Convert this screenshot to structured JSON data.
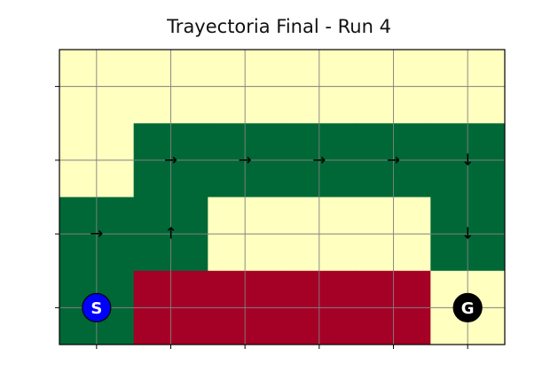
{
  "chart_data": {
    "type": "heatmap",
    "title": "Trayectoria Final - Run 4",
    "xlabel": "",
    "ylabel": "",
    "grid": true,
    "n_cols": 6,
    "n_rows": 4,
    "cell_colors": {
      "empty": "#ffffc0",
      "path": "#006837",
      "hazard": "#a50026"
    },
    "cells": [
      [
        "empty",
        "empty",
        "empty",
        "empty",
        "empty",
        "empty"
      ],
      [
        "empty",
        "path",
        "path",
        "path",
        "path",
        "path"
      ],
      [
        "path",
        "path",
        "empty",
        "empty",
        "empty",
        "path"
      ],
      [
        "path",
        "hazard",
        "hazard",
        "hazard",
        "hazard",
        "empty"
      ]
    ],
    "arrows": [
      {
        "row": 1,
        "col": 1,
        "label": "→"
      },
      {
        "row": 1,
        "col": 2,
        "label": "→"
      },
      {
        "row": 1,
        "col": 3,
        "label": "→"
      },
      {
        "row": 1,
        "col": 4,
        "label": "→"
      },
      {
        "row": 1,
        "col": 5,
        "label": "↓"
      },
      {
        "row": 2,
        "col": 0,
        "label": "→"
      },
      {
        "row": 2,
        "col": 1,
        "label": "↑"
      },
      {
        "row": 2,
        "col": 5,
        "label": "↓"
      }
    ],
    "markers": [
      {
        "row": 3,
        "col": 0,
        "label": "S",
        "color": "#0000ff"
      },
      {
        "row": 3,
        "col": 5,
        "label": "G",
        "color": "#000000"
      }
    ]
  }
}
